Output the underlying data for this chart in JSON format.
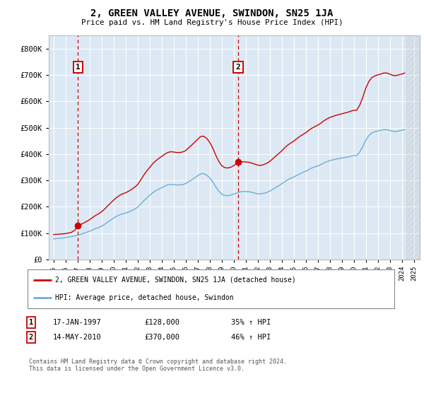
{
  "title": "2, GREEN VALLEY AVENUE, SWINDON, SN25 1JA",
  "subtitle": "Price paid vs. HM Land Registry's House Price Index (HPI)",
  "background_color": "#dce9f5",
  "plot_bg_color": "#dce9f5",
  "ylim": [
    0,
    850000
  ],
  "yticks": [
    0,
    100000,
    200000,
    300000,
    400000,
    500000,
    600000,
    700000,
    800000
  ],
  "ytick_labels": [
    "£0",
    "£100K",
    "£200K",
    "£300K",
    "£400K",
    "£500K",
    "£600K",
    "£700K",
    "£800K"
  ],
  "xlim_start": 1994.6,
  "xlim_end": 2025.5,
  "xtick_years": [
    1995,
    1996,
    1997,
    1998,
    1999,
    2000,
    2001,
    2002,
    2003,
    2004,
    2005,
    2006,
    2007,
    2008,
    2009,
    2010,
    2011,
    2012,
    2013,
    2014,
    2015,
    2016,
    2017,
    2018,
    2019,
    2020,
    2021,
    2022,
    2023,
    2024,
    2025
  ],
  "sale1_x": 1997.04,
  "sale1_y": 128000,
  "sale1_label": "1",
  "sale2_x": 2010.37,
  "sale2_y": 370000,
  "sale2_label": "2",
  "hpi_color": "#6baed6",
  "price_color": "#cc0000",
  "dashed_color": "#cc0000",
  "legend_label_price": "2, GREEN VALLEY AVENUE, SWINDON, SN25 1JA (detached house)",
  "legend_label_hpi": "HPI: Average price, detached house, Swindon",
  "annotation1_date": "17-JAN-1997",
  "annotation1_price": "£128,000",
  "annotation1_hpi": "35% ↑ HPI",
  "annotation2_date": "14-MAY-2010",
  "annotation2_price": "£370,000",
  "annotation2_hpi": "46% ↑ HPI",
  "footer": "Contains HM Land Registry data © Crown copyright and database right 2024.\nThis data is licensed under the Open Government Licence v3.0.",
  "hpi_data_x": [
    1995.0,
    1995.25,
    1995.5,
    1995.75,
    1996.0,
    1996.25,
    1996.5,
    1996.75,
    1997.0,
    1997.25,
    1997.5,
    1997.75,
    1998.0,
    1998.25,
    1998.5,
    1998.75,
    1999.0,
    1999.25,
    1999.5,
    1999.75,
    2000.0,
    2000.25,
    2000.5,
    2000.75,
    2001.0,
    2001.25,
    2001.5,
    2001.75,
    2002.0,
    2002.25,
    2002.5,
    2002.75,
    2003.0,
    2003.25,
    2003.5,
    2003.75,
    2004.0,
    2004.25,
    2004.5,
    2004.75,
    2005.0,
    2005.25,
    2005.5,
    2005.75,
    2006.0,
    2006.25,
    2006.5,
    2006.75,
    2007.0,
    2007.25,
    2007.5,
    2007.75,
    2008.0,
    2008.25,
    2008.5,
    2008.75,
    2009.0,
    2009.25,
    2009.5,
    2009.75,
    2010.0,
    2010.25,
    2010.5,
    2010.75,
    2011.0,
    2011.25,
    2011.5,
    2011.75,
    2012.0,
    2012.25,
    2012.5,
    2012.75,
    2013.0,
    2013.25,
    2013.5,
    2013.75,
    2014.0,
    2014.25,
    2014.5,
    2014.75,
    2015.0,
    2015.25,
    2015.5,
    2015.75,
    2016.0,
    2016.25,
    2016.5,
    2016.75,
    2017.0,
    2017.25,
    2017.5,
    2017.75,
    2018.0,
    2018.25,
    2018.5,
    2018.75,
    2019.0,
    2019.25,
    2019.5,
    2019.75,
    2020.0,
    2020.25,
    2020.5,
    2020.75,
    2021.0,
    2021.25,
    2021.5,
    2021.75,
    2022.0,
    2022.25,
    2022.5,
    2022.75,
    2023.0,
    2023.25,
    2023.5,
    2023.75,
    2024.0,
    2024.25
  ],
  "hpi_data_y": [
    78000,
    79000,
    80000,
    81000,
    83000,
    85000,
    87000,
    89000,
    92000,
    95000,
    99000,
    103000,
    107000,
    112000,
    117000,
    121000,
    126000,
    133000,
    141000,
    149000,
    157000,
    164000,
    169000,
    173000,
    176000,
    180000,
    185000,
    191000,
    198000,
    210000,
    222000,
    233000,
    243000,
    253000,
    261000,
    267000,
    272000,
    278000,
    283000,
    285000,
    284000,
    283000,
    283000,
    284000,
    288000,
    295000,
    302000,
    310000,
    318000,
    325000,
    326000,
    320000,
    310000,
    295000,
    276000,
    260000,
    248000,
    243000,
    242000,
    244000,
    248000,
    252000,
    256000,
    258000,
    258000,
    257000,
    255000,
    252000,
    249000,
    249000,
    251000,
    254000,
    259000,
    266000,
    273000,
    280000,
    287000,
    295000,
    302000,
    308000,
    313000,
    319000,
    325000,
    330000,
    335000,
    341000,
    347000,
    351000,
    355000,
    360000,
    366000,
    371000,
    375000,
    378000,
    381000,
    383000,
    385000,
    387000,
    389000,
    392000,
    394000,
    395000,
    408000,
    428000,
    452000,
    470000,
    480000,
    485000,
    488000,
    490000,
    493000,
    493000,
    490000,
    487000,
    486000,
    488000,
    490000,
    493000
  ],
  "price_data_x": [
    1995.0,
    1995.25,
    1995.5,
    1995.75,
    1996.0,
    1996.25,
    1996.5,
    1996.75,
    1997.04,
    1997.25,
    1997.5,
    1997.75,
    1998.0,
    1998.25,
    1998.5,
    1998.75,
    1999.0,
    1999.25,
    1999.5,
    1999.75,
    2000.0,
    2000.25,
    2000.5,
    2000.75,
    2001.0,
    2001.25,
    2001.5,
    2001.75,
    2002.0,
    2002.25,
    2002.5,
    2002.75,
    2003.0,
    2003.25,
    2003.5,
    2003.75,
    2004.0,
    2004.25,
    2004.5,
    2004.75,
    2005.0,
    2005.25,
    2005.5,
    2005.75,
    2006.0,
    2006.25,
    2006.5,
    2006.75,
    2007.0,
    2007.25,
    2007.5,
    2007.75,
    2008.0,
    2008.25,
    2008.5,
    2008.75,
    2009.0,
    2009.25,
    2009.5,
    2009.75,
    2010.0,
    2010.37,
    2010.5,
    2010.75,
    2011.0,
    2011.25,
    2011.5,
    2011.75,
    2012.0,
    2012.25,
    2012.5,
    2012.75,
    2013.0,
    2013.25,
    2013.5,
    2013.75,
    2014.0,
    2014.25,
    2014.5,
    2014.75,
    2015.0,
    2015.25,
    2015.5,
    2015.75,
    2016.0,
    2016.25,
    2016.5,
    2016.75,
    2017.0,
    2017.25,
    2017.5,
    2017.75,
    2018.0,
    2018.25,
    2018.5,
    2018.75,
    2019.0,
    2019.25,
    2019.5,
    2019.75,
    2020.0,
    2020.25,
    2020.5,
    2020.75,
    2021.0,
    2021.25,
    2021.5,
    2021.75,
    2022.0,
    2022.25,
    2022.5,
    2022.75,
    2023.0,
    2023.25,
    2023.5,
    2023.75,
    2024.0,
    2024.25
  ],
  "price_data_y": [
    94640,
    95000,
    96000,
    97000,
    98000,
    100000,
    103000,
    110000,
    128000,
    132000,
    138000,
    144000,
    151000,
    159000,
    167000,
    173000,
    181000,
    191000,
    203000,
    214000,
    225000,
    235000,
    243000,
    249000,
    253000,
    259000,
    266000,
    274000,
    284000,
    301000,
    319000,
    335000,
    349000,
    363000,
    374000,
    383000,
    391000,
    399000,
    406000,
    409000,
    408000,
    406000,
    406000,
    408000,
    413000,
    424000,
    434000,
    445000,
    456000,
    467000,
    468000,
    460000,
    445000,
    424000,
    397000,
    373000,
    356000,
    349000,
    347000,
    350000,
    356000,
    370000,
    368000,
    371000,
    370000,
    369000,
    366000,
    362000,
    358000,
    357000,
    360000,
    365000,
    372000,
    382000,
    392000,
    402000,
    412000,
    424000,
    434000,
    442000,
    449000,
    458000,
    467000,
    474000,
    481000,
    490000,
    498000,
    504000,
    510000,
    517000,
    526000,
    533000,
    539000,
    543000,
    547000,
    550000,
    553000,
    556000,
    559000,
    563000,
    566000,
    567000,
    586000,
    615000,
    650000,
    675000,
    690000,
    697000,
    701000,
    704000,
    708000,
    708000,
    704000,
    699000,
    698000,
    701000,
    704000,
    708000
  ]
}
